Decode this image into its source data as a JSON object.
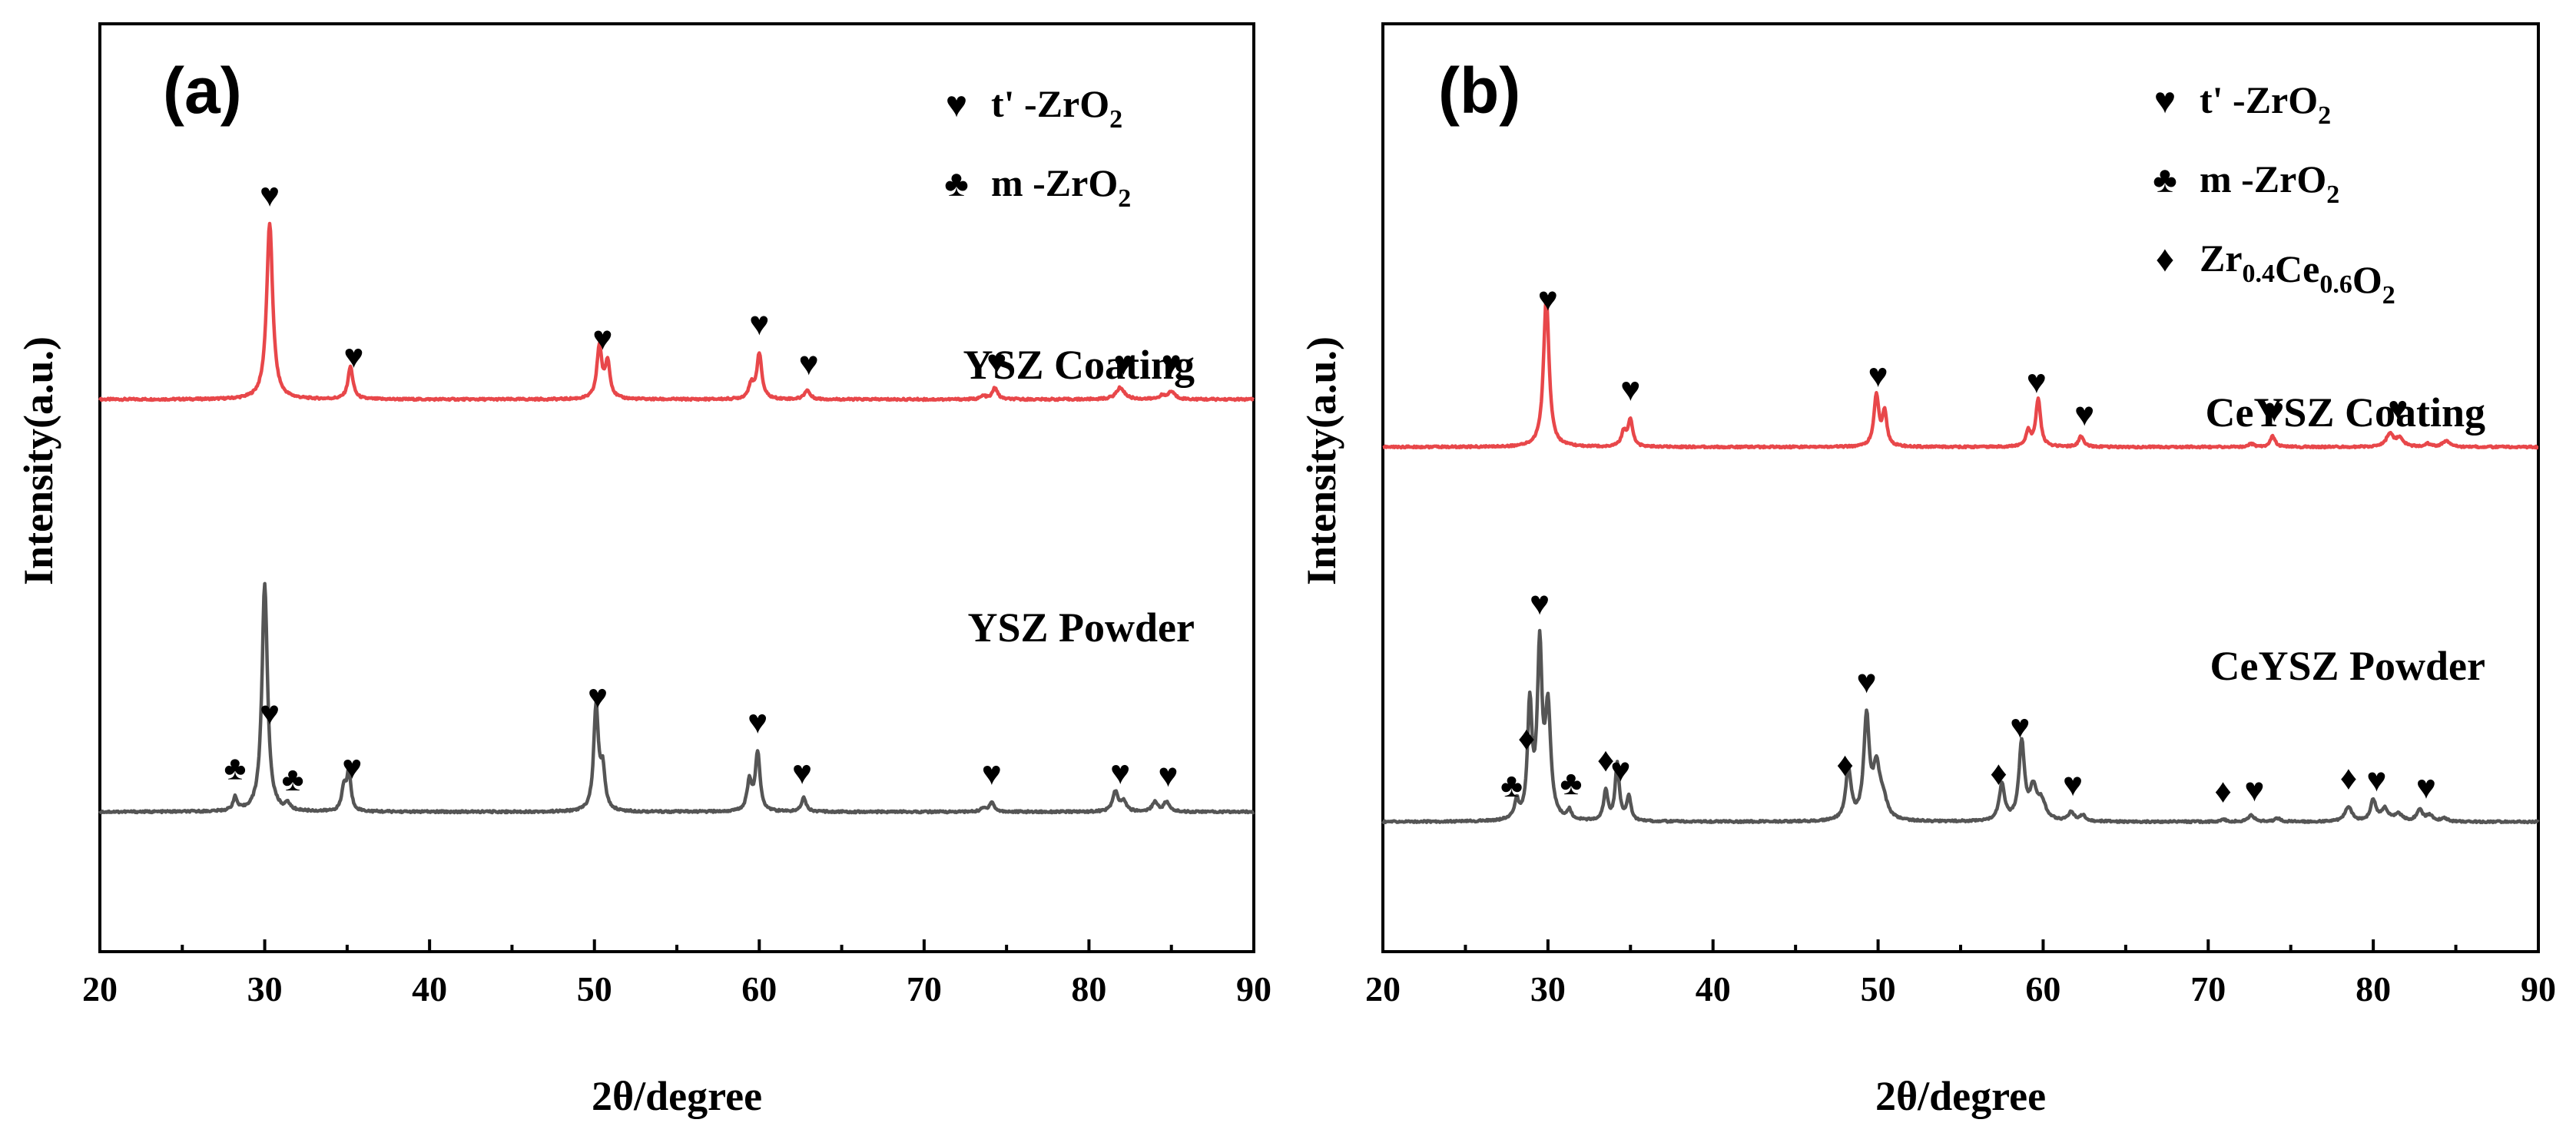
{
  "chart_data": [
    {
      "type": "line",
      "panel_label": "(a)",
      "xlabel": "2θ/degree",
      "ylabel": "Intensity(a.u.)",
      "xlim": [
        20,
        90
      ],
      "xticks": [
        "20",
        "30",
        "40",
        "50",
        "60",
        "70",
        "80",
        "90"
      ],
      "legend": [
        {
          "symbol": "♥",
          "pre": "t' -ZrO",
          "sub": "2",
          "mid": "",
          "sub2": "",
          "post": "",
          "sub3": ""
        },
        {
          "symbol": "♣",
          "pre": "m -ZrO",
          "sub": "2",
          "mid": "",
          "sub2": "",
          "post": "",
          "sub3": ""
        }
      ],
      "series": [
        {
          "name": "YSZ Coating",
          "color": "#e8474a",
          "baseline": 0.55,
          "peaks": [
            [
              30.3,
              2.7,
              0.22
            ],
            [
              35.2,
              0.5,
              0.18
            ],
            [
              50.3,
              0.8,
              0.18
            ],
            [
              50.8,
              0.55,
              0.18
            ],
            [
              59.5,
              0.22,
              0.18
            ],
            [
              60.0,
              0.7,
              0.18
            ],
            [
              62.9,
              0.14,
              0.2
            ],
            [
              73.6,
              0.05,
              0.2
            ],
            [
              74.3,
              0.18,
              0.18
            ],
            [
              81.9,
              0.18,
              0.3
            ],
            [
              84.4,
              0.05,
              0.2
            ],
            [
              85.0,
              0.12,
              0.25
            ]
          ],
          "markers": [
            {
              "x": 30.3,
              "sym": "♥"
            },
            {
              "x": 35.4,
              "sym": "♥"
            },
            {
              "x": 50.5,
              "sym": "♥"
            },
            {
              "x": 60.0,
              "sym": "♥"
            },
            {
              "x": 63.0,
              "sym": "♥"
            },
            {
              "x": 74.4,
              "sym": "♥"
            },
            {
              "x": 82.1,
              "sym": "♥"
            },
            {
              "x": 85.0,
              "sym": "♥"
            }
          ]
        },
        {
          "name": "YSZ Powder",
          "color": "#555555",
          "baseline": 0.1,
          "peaks": [
            [
              28.2,
              0.2,
              0.15
            ],
            [
              30.0,
              3.5,
              0.2
            ],
            [
              31.4,
              0.1,
              0.15
            ],
            [
              34.8,
              0.35,
              0.15
            ],
            [
              35.1,
              0.6,
              0.15
            ],
            [
              50.1,
              1.6,
              0.17
            ],
            [
              50.5,
              0.6,
              0.17
            ],
            [
              59.4,
              0.45,
              0.17
            ],
            [
              59.9,
              0.9,
              0.17
            ],
            [
              62.7,
              0.22,
              0.17
            ],
            [
              73.6,
              0.05,
              0.2
            ],
            [
              74.1,
              0.15,
              0.17
            ],
            [
              81.6,
              0.3,
              0.2
            ],
            [
              82.1,
              0.15,
              0.2
            ],
            [
              84.0,
              0.15,
              0.2
            ],
            [
              84.7,
              0.15,
              0.2
            ]
          ],
          "markers": [
            {
              "x": 28.2,
              "sym": "♣"
            },
            {
              "x": 31.7,
              "sym": "♣"
            },
            {
              "x": 30.3,
              "sym": "♥"
            },
            {
              "x": 35.3,
              "sym": "♥"
            },
            {
              "x": 50.2,
              "sym": "♥"
            },
            {
              "x": 59.9,
              "sym": "♥"
            },
            {
              "x": 62.6,
              "sym": "♥"
            },
            {
              "x": 74.1,
              "sym": "♥"
            },
            {
              "x": 81.9,
              "sym": "♥"
            },
            {
              "x": 84.8,
              "sym": "♥"
            }
          ]
        }
      ]
    },
    {
      "type": "line",
      "panel_label": "(b)",
      "xlabel": "2θ/degree",
      "ylabel": "Intensity(a.u.)",
      "xlim": [
        20,
        90
      ],
      "xticks": [
        "20",
        "30",
        "40",
        "50",
        "60",
        "70",
        "80",
        "90"
      ],
      "legend": [
        {
          "symbol": "♥",
          "pre": "t' -ZrO",
          "sub": "2",
          "mid": "",
          "sub2": "",
          "post": "",
          "sub3": ""
        },
        {
          "symbol": "♣",
          "pre": "m -ZrO",
          "sub": "2",
          "mid": "",
          "sub2": "",
          "post": "",
          "sub3": ""
        },
        {
          "symbol": "♦",
          "pre": "Zr",
          "sub": "0.4",
          "mid": "Ce",
          "sub2": "0.6",
          "post": "O",
          "sub3": "2"
        }
      ],
      "series": [
        {
          "name": "CeYSZ Coating",
          "color": "#e8474a",
          "baseline": 0.55,
          "peaks": [
            [
              29.9,
              2.5,
              0.2
            ],
            [
              34.6,
              0.25,
              0.18
            ],
            [
              35.0,
              0.45,
              0.16
            ],
            [
              49.9,
              0.85,
              0.18
            ],
            [
              50.4,
              0.55,
              0.16
            ],
            [
              59.1,
              0.25,
              0.17
            ],
            [
              59.7,
              0.8,
              0.17
            ],
            [
              62.3,
              0.18,
              0.17
            ],
            [
              72.6,
              0.05,
              0.2
            ],
            [
              73.9,
              0.18,
              0.18
            ],
            [
              81.0,
              0.22,
              0.25
            ],
            [
              81.6,
              0.15,
              0.25
            ],
            [
              83.3,
              0.05,
              0.2
            ],
            [
              84.4,
              0.1,
              0.25
            ]
          ],
          "markers": [
            {
              "x": 30.0,
              "sym": "♥"
            },
            {
              "x": 35.0,
              "sym": "♥"
            },
            {
              "x": 50.0,
              "sym": "♥"
            },
            {
              "x": 59.6,
              "sym": "♥"
            },
            {
              "x": 62.5,
              "sym": "♥"
            },
            {
              "x": 74.0,
              "sym": "♥"
            },
            {
              "x": 81.5,
              "sym": "♥"
            }
          ]
        },
        {
          "name": "CeYSZ Powder",
          "color": "#555555",
          "baseline": 0.1,
          "peaks": [
            [
              28.1,
              0.3,
              0.15
            ],
            [
              28.9,
              1.9,
              0.16
            ],
            [
              29.5,
              2.8,
              0.17
            ],
            [
              30.0,
              1.8,
              0.2
            ],
            [
              31.3,
              0.15,
              0.15
            ],
            [
              33.5,
              0.5,
              0.15
            ],
            [
              34.2,
              0.95,
              0.15
            ],
            [
              34.9,
              0.4,
              0.15
            ],
            [
              48.2,
              0.85,
              0.2
            ],
            [
              49.3,
              1.7,
              0.2
            ],
            [
              49.9,
              0.8,
              0.25
            ],
            [
              50.3,
              0.3,
              0.3
            ],
            [
              57.5,
              0.6,
              0.2
            ],
            [
              58.7,
              1.3,
              0.2
            ],
            [
              59.4,
              0.5,
              0.25
            ],
            [
              59.9,
              0.3,
              0.3
            ],
            [
              61.7,
              0.15,
              0.2
            ],
            [
              62.4,
              0.1,
              0.2
            ],
            [
              70.9,
              0.04,
              0.2
            ],
            [
              72.6,
              0.12,
              0.2
            ],
            [
              74.2,
              0.06,
              0.2
            ],
            [
              78.5,
              0.25,
              0.25
            ],
            [
              80.0,
              0.35,
              0.2
            ],
            [
              80.7,
              0.2,
              0.25
            ],
            [
              81.5,
              0.12,
              0.3
            ],
            [
              82.8,
              0.2,
              0.2
            ],
            [
              83.4,
              0.1,
              0.25
            ],
            [
              84.3,
              0.05,
              0.25
            ]
          ],
          "markers": [
            {
              "x": 27.8,
              "sym": "♣"
            },
            {
              "x": 31.4,
              "sym": "♣"
            },
            {
              "x": 28.7,
              "sym": "♦"
            },
            {
              "x": 29.5,
              "sym": "♥"
            },
            {
              "x": 33.5,
              "sym": "♦"
            },
            {
              "x": 34.4,
              "sym": "♥"
            },
            {
              "x": 48.0,
              "sym": "♦"
            },
            {
              "x": 49.3,
              "sym": "♥"
            },
            {
              "x": 57.3,
              "sym": "♦"
            },
            {
              "x": 58.6,
              "sym": "♥"
            },
            {
              "x": 61.8,
              "sym": "♥"
            },
            {
              "x": 70.9,
              "sym": "♦"
            },
            {
              "x": 72.8,
              "sym": "♥"
            },
            {
              "x": 78.5,
              "sym": "♦"
            },
            {
              "x": 80.2,
              "sym": "♥"
            },
            {
              "x": 83.2,
              "sym": "♥"
            }
          ]
        }
      ]
    }
  ]
}
